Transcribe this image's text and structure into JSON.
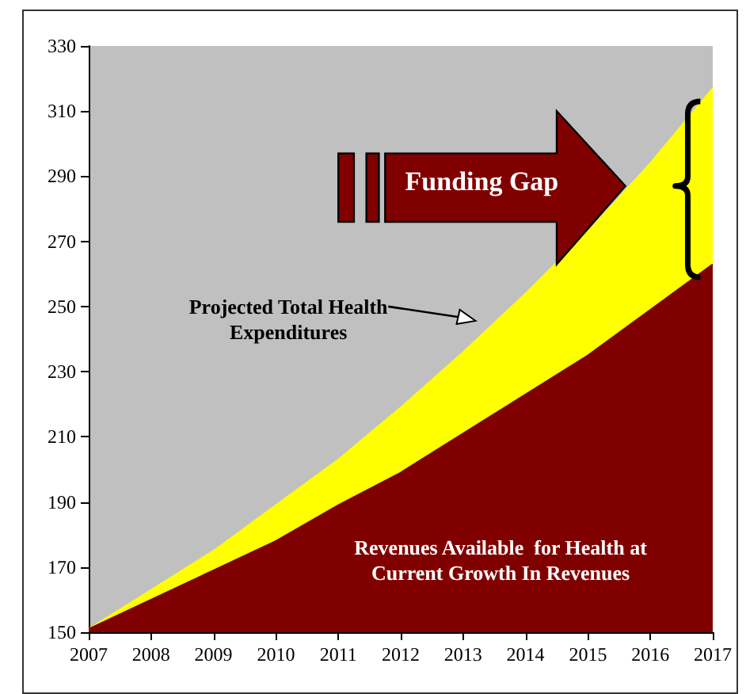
{
  "chart_data": {
    "type": "area",
    "x": [
      2007,
      2008,
      2009,
      2010,
      2011,
      2012,
      2013,
      2014,
      2015,
      2016,
      2017
    ],
    "series": [
      {
        "name": "Projected Total Health Expenditures",
        "color": "#ffff00",
        "values": [
          151,
          163,
          175,
          189,
          203,
          219,
          236,
          254,
          273,
          294,
          317
        ]
      },
      {
        "name": "Revenues Available  for Health at Current Growth In Revenues",
        "color": "#800000",
        "values": [
          151,
          160,
          169,
          178,
          189,
          199,
          211,
          223,
          235,
          249,
          263
        ]
      }
    ],
    "annotations": [
      "Funding Gap"
    ],
    "xlim": [
      2007,
      2017
    ],
    "xticks": [
      2007,
      2008,
      2009,
      2010,
      2011,
      2012,
      2013,
      2014,
      2015,
      2016,
      2017
    ],
    "ylim": [
      150,
      330
    ],
    "yticks": [
      150,
      170,
      190,
      210,
      230,
      250,
      270,
      290,
      310,
      330
    ],
    "grid": false,
    "legend": false
  }
}
